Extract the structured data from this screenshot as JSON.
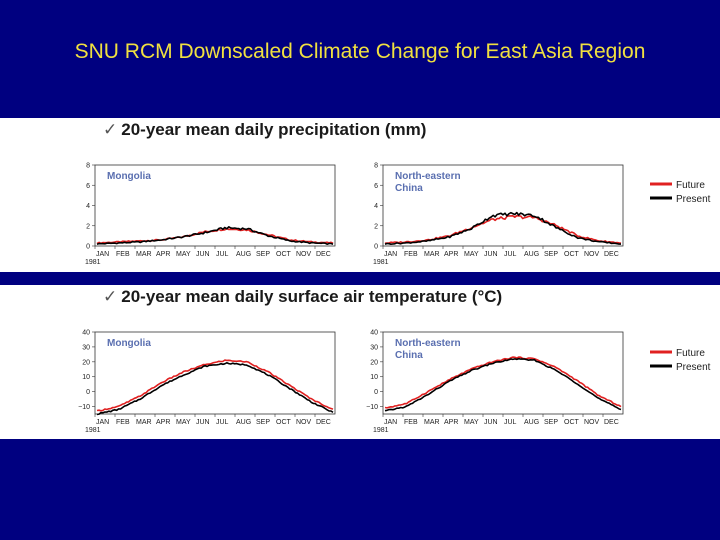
{
  "slide": {
    "title": "SNU RCM Downscaled Climate Change for East Asia Region",
    "background": "#000080",
    "title_color": "#f0e040"
  },
  "sections": [
    {
      "check": "✓",
      "heading": "20-year mean daily precipitation (mm)"
    },
    {
      "check": "✓",
      "heading": "20-year mean daily surface air temperature (°C)"
    }
  ],
  "legend": [
    {
      "label": "Future",
      "color": "#e02020"
    },
    {
      "label": "Present",
      "color": "#000000"
    }
  ],
  "chart_data": [
    {
      "type": "line",
      "region": "Mongolia",
      "variable": "precipitation",
      "x": [
        "JAN",
        "FEB",
        "MAR",
        "APR",
        "MAY",
        "JUN",
        "JUL",
        "AUG",
        "SEP",
        "OCT",
        "NOV",
        "DEC"
      ],
      "year_label": "1981",
      "ylim": [
        0,
        8
      ],
      "yticks": [
        0,
        2,
        4,
        6,
        8
      ],
      "series": [
        {
          "name": "Future",
          "color": "#e02020",
          "values": [
            0.3,
            0.4,
            0.5,
            0.6,
            0.9,
            1.4,
            1.7,
            1.6,
            1.1,
            0.6,
            0.4,
            0.3
          ]
        },
        {
          "name": "Present",
          "color": "#000000",
          "values": [
            0.2,
            0.3,
            0.4,
            0.6,
            0.9,
            1.3,
            1.8,
            1.7,
            1.0,
            0.5,
            0.3,
            0.2
          ]
        }
      ]
    },
    {
      "type": "line",
      "region": "North-eastern\nChina",
      "variable": "precipitation",
      "x": [
        "JAN",
        "FEB",
        "MAR",
        "APR",
        "MAY",
        "JUN",
        "JUL",
        "AUG",
        "SEP",
        "OCT",
        "NOV",
        "DEC"
      ],
      "year_label": "1981",
      "ylim": [
        0,
        8
      ],
      "yticks": [
        0,
        2,
        4,
        6,
        8
      ],
      "series": [
        {
          "name": "Future",
          "color": "#e02020",
          "values": [
            0.3,
            0.4,
            0.6,
            1.0,
            1.8,
            2.6,
            2.9,
            2.8,
            2.0,
            1.0,
            0.5,
            0.3
          ]
        },
        {
          "name": "Present",
          "color": "#000000",
          "values": [
            0.2,
            0.3,
            0.5,
            0.9,
            1.7,
            3.0,
            3.2,
            3.0,
            1.8,
            0.8,
            0.4,
            0.2
          ]
        }
      ]
    },
    {
      "type": "line",
      "region": "Mongolia",
      "variable": "temperature",
      "x": [
        "JAN",
        "FEB",
        "MAR",
        "APR",
        "MAY",
        "JUN",
        "JUL",
        "AUG",
        "SEP",
        "OCT",
        "NOV",
        "DEC"
      ],
      "year_label": "1981",
      "ylim": [
        -15,
        40
      ],
      "yticks": [
        -10,
        0,
        10,
        20,
        30,
        40
      ],
      "series": [
        {
          "name": "Future",
          "color": "#e02020",
          "values": [
            -13,
            -10,
            -3,
            6,
            13,
            18,
            21,
            20,
            13,
            4,
            -5,
            -12
          ]
        },
        {
          "name": "Present",
          "color": "#000000",
          "values": [
            -15,
            -12,
            -5,
            4,
            11,
            17,
            19,
            18,
            11,
            2,
            -7,
            -14
          ]
        }
      ]
    },
    {
      "type": "line",
      "region": "North-eastern\nChina",
      "variable": "temperature",
      "x": [
        "JAN",
        "FEB",
        "MAR",
        "APR",
        "MAY",
        "JUN",
        "JUL",
        "AUG",
        "SEP",
        "OCT",
        "NOV",
        "DEC"
      ],
      "year_label": "1981",
      "ylim": [
        -15,
        40
      ],
      "yticks": [
        -10,
        0,
        10,
        20,
        30,
        40
      ],
      "series": [
        {
          "name": "Future",
          "color": "#e02020",
          "values": [
            -11,
            -8,
            0,
            8,
            15,
            20,
            23,
            22,
            16,
            7,
            -3,
            -10
          ]
        },
        {
          "name": "Present",
          "color": "#000000",
          "values": [
            -13,
            -10,
            -2,
            7,
            14,
            19,
            22,
            21,
            14,
            5,
            -5,
            -12
          ]
        }
      ]
    }
  ]
}
